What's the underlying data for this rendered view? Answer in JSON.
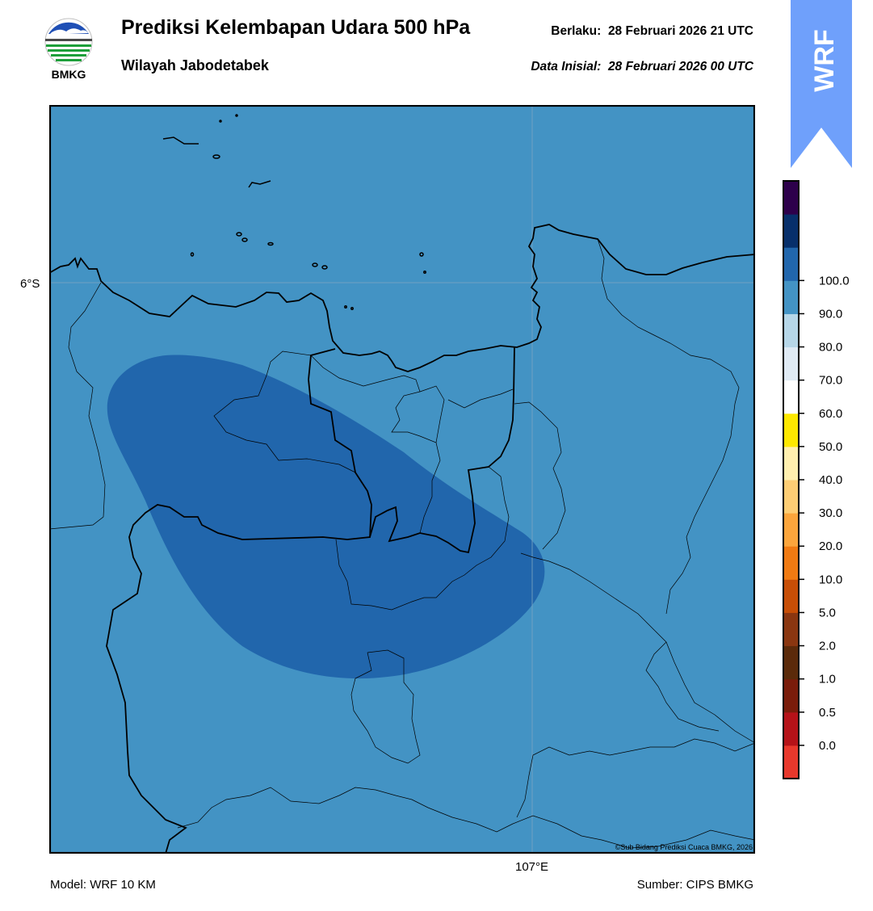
{
  "header": {
    "title": "Prediksi Kelembapan Udara 500 hPa",
    "subtitle": "Wilayah Jabodetabek",
    "valid_label": "Berlaku:",
    "valid_time": "28 Februari 2026 21 UTC",
    "init_label": "Data Inisial:",
    "init_time": "28 Februari 2026 00 UTC"
  },
  "logo": {
    "text": "BMKG",
    "icon": "bmkg-logo"
  },
  "badge": {
    "text": "WRF",
    "color": "#6fa0fb"
  },
  "map": {
    "lat_label": "6°S",
    "lon_label": "107°E",
    "copyright": "©Sub Bidang Prediksi Cuaca BMKG, 2026",
    "background_color": "#4393c4",
    "region_color": "#2166ac",
    "boundary_color": "#000000"
  },
  "footer": {
    "model": "Model: WRF 10 KM",
    "source": "Sumber: CIPS BMKG"
  },
  "colorbar": {
    "ticks": [
      "0.0",
      "0.5",
      "1.0",
      "2.0",
      "5.0",
      "10.0",
      "20.0",
      "30.0",
      "40.0",
      "50.0",
      "60.0",
      "70.0",
      "80.0",
      "90.0",
      "100.0"
    ],
    "colors": [
      "#e8382c",
      "#b51218",
      "#7a1c0a",
      "#5b2a0a",
      "#8a3610",
      "#c74e06",
      "#f07a12",
      "#fba53c",
      "#fdcd74",
      "#ffefaf",
      "#fde800",
      "#ffffff",
      "#dfeaf4",
      "#b6d6e8",
      "#4393c4",
      "#2166ac",
      "#072f6b",
      "#2d004b"
    ]
  }
}
